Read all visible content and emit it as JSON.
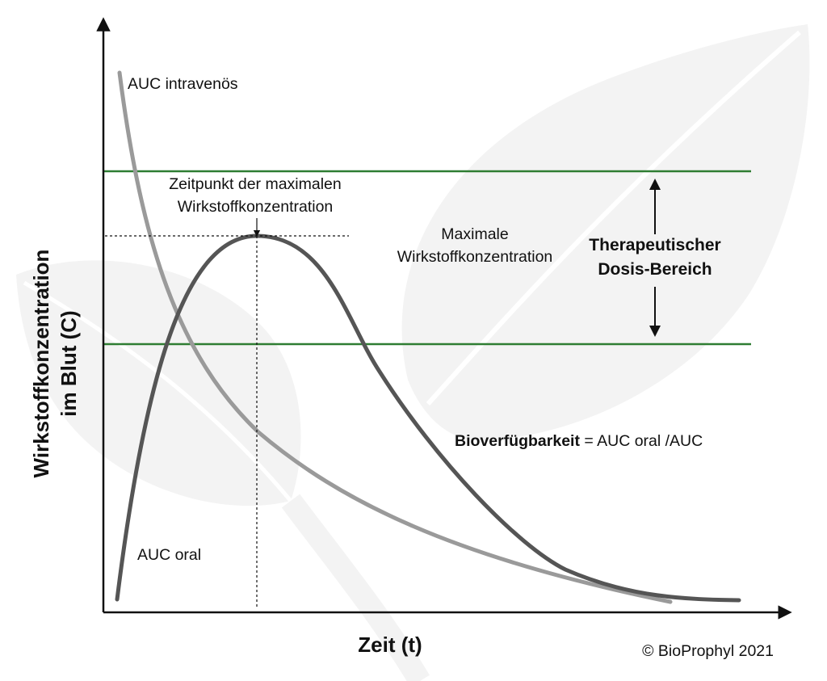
{
  "diagram": {
    "y_axis_label_line1": "Wirkstoffkonzentration",
    "y_axis_label_line2": "im Blut (C)",
    "x_axis_label": "Zeit (t)",
    "iv_curve_label": "AUC intravenös",
    "oral_curve_label": "AUC oral",
    "tmax_label_line1": "Zeitpunkt der maximalen",
    "tmax_label_line2": "Wirkstoffkonzentration",
    "cmax_label_line1": "Maximale",
    "cmax_label_line2": "Wirkstoffkonzentration",
    "therapeutic_label_line1": "Therapeutischer",
    "therapeutic_label_line2": "Dosis-Bereich",
    "bioavailability_term": "Bioverfügbarkeit",
    "bioavailability_formula": " = AUC oral /AUC",
    "copyright": "© BioProphyl 2021",
    "colors": {
      "axis": "#111111",
      "therapeutic_lines": "#2e7d32",
      "iv_curve": "#9a9a9a",
      "oral_curve": "#555555",
      "background_leaf": "#f2f2f2"
    }
  }
}
